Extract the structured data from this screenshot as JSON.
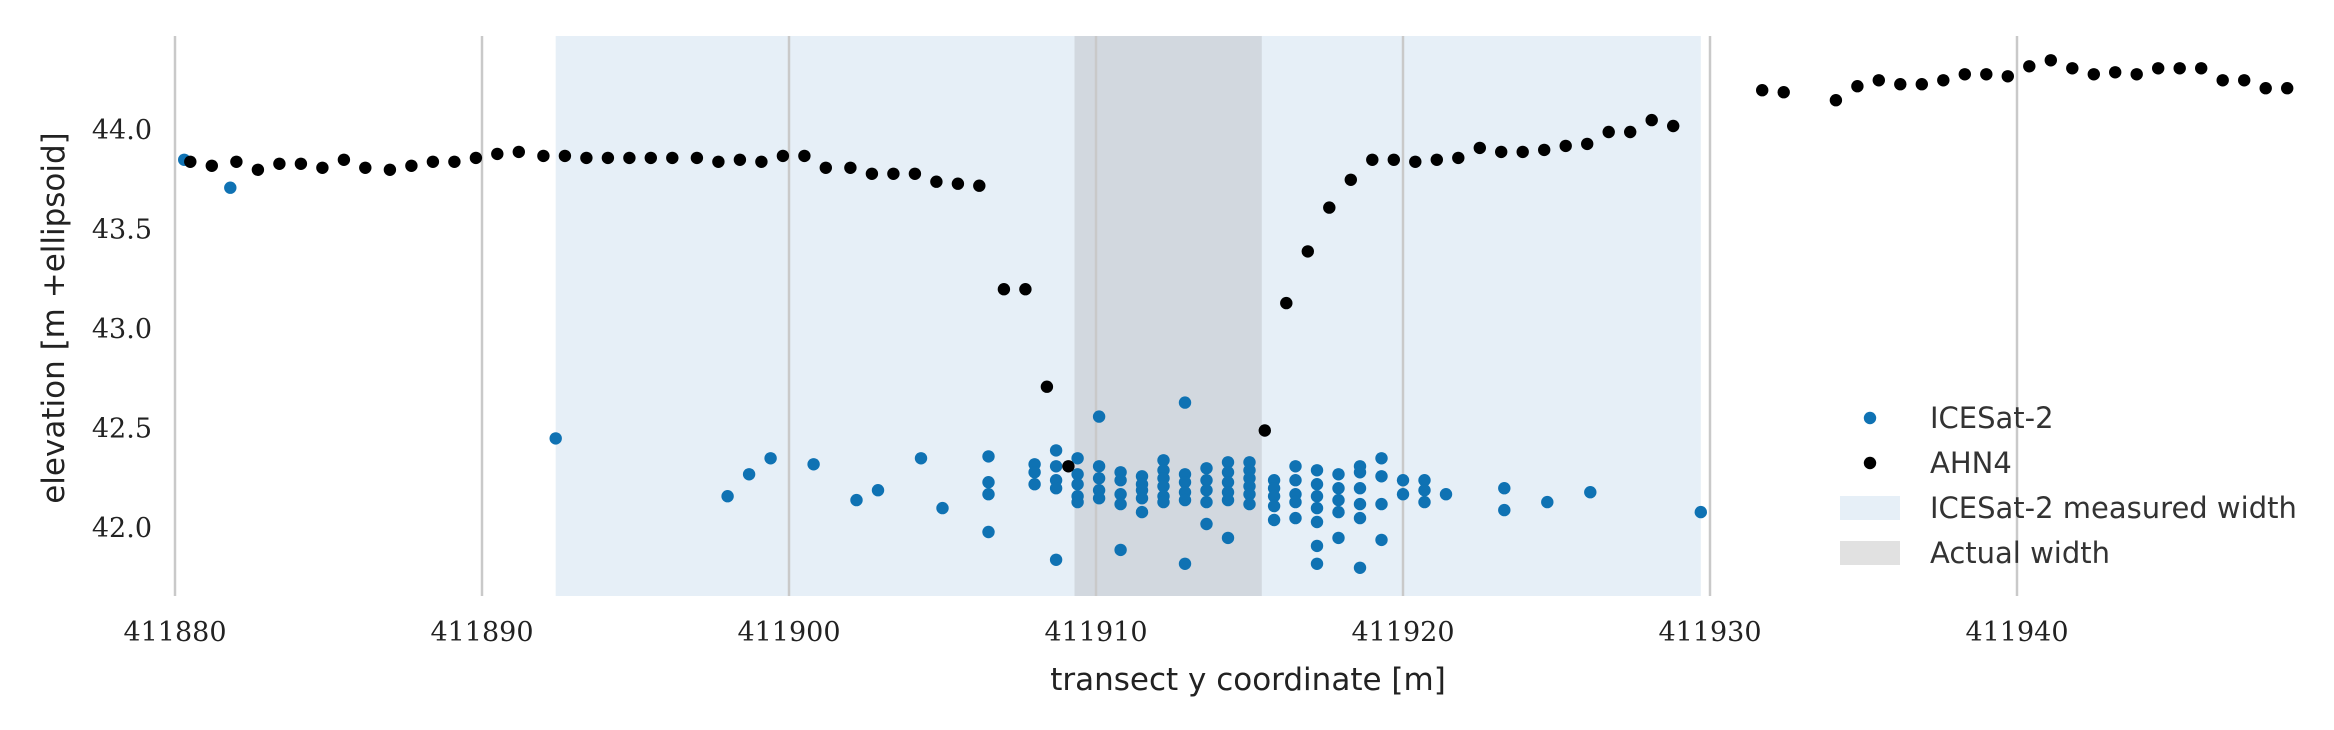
{
  "chart_data": {
    "type": "scatter",
    "title": "",
    "xlabel": "transect y coordinate [m]",
    "ylabel": "elevation [m +ellipsoid]",
    "xlim": [
      411880,
      411950
    ],
    "ylim": [
      41.67,
      44.5
    ],
    "x_ticks": [
      411880,
      411890,
      411900,
      411910,
      411920,
      411930,
      411940
    ],
    "y_ticks": [
      42.0,
      42.5,
      43.0,
      43.5,
      44.0
    ],
    "grid": "vertical",
    "legend_position": "lower-right",
    "regions": [
      {
        "name": "ICESat-2 measured width",
        "x0": 411892.4,
        "x1": 411929.7,
        "color": "#e6eff7"
      },
      {
        "name": "Actual width",
        "x0": 411909.3,
        "x1": 411915.4,
        "color": "#d2d8df"
      }
    ],
    "series": [
      {
        "name": "ICESat-2",
        "color": "#0f72b3",
        "points": [
          [
            411880.3,
            43.85
          ],
          [
            411881.8,
            43.71
          ],
          [
            411892.4,
            42.45
          ],
          [
            411898.0,
            42.16
          ],
          [
            411898.7,
            42.27
          ],
          [
            411899.4,
            42.35
          ],
          [
            411900.8,
            42.32
          ],
          [
            411902.2,
            42.14
          ],
          [
            411902.9,
            42.19
          ],
          [
            411904.3,
            42.35
          ],
          [
            411905.0,
            42.1
          ],
          [
            411906.5,
            42.36
          ],
          [
            411906.5,
            42.23
          ],
          [
            411906.5,
            42.17
          ],
          [
            411906.5,
            41.98
          ],
          [
            411908.0,
            42.32
          ],
          [
            411908.0,
            42.28
          ],
          [
            411908.0,
            42.22
          ],
          [
            411908.7,
            42.39
          ],
          [
            411908.7,
            42.31
          ],
          [
            411908.7,
            42.24
          ],
          [
            411908.7,
            42.2
          ],
          [
            411908.7,
            41.84
          ],
          [
            411909.4,
            42.35
          ],
          [
            411909.4,
            42.27
          ],
          [
            411909.4,
            42.22
          ],
          [
            411909.4,
            42.16
          ],
          [
            411909.4,
            42.13
          ],
          [
            411910.1,
            42.56
          ],
          [
            411910.1,
            42.31
          ],
          [
            411910.1,
            42.25
          ],
          [
            411910.1,
            42.19
          ],
          [
            411910.1,
            42.15
          ],
          [
            411910.8,
            42.28
          ],
          [
            411910.8,
            42.24
          ],
          [
            411910.8,
            42.17
          ],
          [
            411910.8,
            42.12
          ],
          [
            411910.8,
            41.89
          ],
          [
            411911.5,
            42.26
          ],
          [
            411911.5,
            42.22
          ],
          [
            411911.5,
            42.19
          ],
          [
            411911.5,
            42.15
          ],
          [
            411911.5,
            42.08
          ],
          [
            411912.2,
            42.34
          ],
          [
            411912.2,
            42.29
          ],
          [
            411912.2,
            42.25
          ],
          [
            411912.2,
            42.21
          ],
          [
            411912.2,
            42.16
          ],
          [
            411912.2,
            42.13
          ],
          [
            411912.9,
            42.63
          ],
          [
            411912.9,
            42.27
          ],
          [
            411912.9,
            42.23
          ],
          [
            411912.9,
            42.18
          ],
          [
            411912.9,
            42.14
          ],
          [
            411912.9,
            41.82
          ],
          [
            411913.6,
            42.3
          ],
          [
            411913.6,
            42.24
          ],
          [
            411913.6,
            42.19
          ],
          [
            411913.6,
            42.13
          ],
          [
            411913.6,
            42.02
          ],
          [
            411914.3,
            42.33
          ],
          [
            411914.3,
            42.28
          ],
          [
            411914.3,
            42.23
          ],
          [
            411914.3,
            42.18
          ],
          [
            411914.3,
            42.14
          ],
          [
            411914.3,
            41.95
          ],
          [
            411915.0,
            42.33
          ],
          [
            411915.0,
            42.29
          ],
          [
            411915.0,
            42.25
          ],
          [
            411915.0,
            42.21
          ],
          [
            411915.0,
            42.17
          ],
          [
            411915.0,
            42.12
          ],
          [
            411915.8,
            42.24
          ],
          [
            411915.8,
            42.2
          ],
          [
            411915.8,
            42.16
          ],
          [
            411915.8,
            42.11
          ],
          [
            411915.8,
            42.04
          ],
          [
            411916.5,
            42.31
          ],
          [
            411916.5,
            42.24
          ],
          [
            411916.5,
            42.17
          ],
          [
            411916.5,
            42.13
          ],
          [
            411916.5,
            42.05
          ],
          [
            411917.2,
            42.29
          ],
          [
            411917.2,
            42.22
          ],
          [
            411917.2,
            42.16
          ],
          [
            411917.2,
            42.1
          ],
          [
            411917.2,
            42.03
          ],
          [
            411917.2,
            41.91
          ],
          [
            411917.2,
            41.82
          ],
          [
            411917.9,
            42.27
          ],
          [
            411917.9,
            42.2
          ],
          [
            411917.9,
            42.14
          ],
          [
            411917.9,
            42.08
          ],
          [
            411917.9,
            41.95
          ],
          [
            411918.6,
            42.31
          ],
          [
            411918.6,
            42.28
          ],
          [
            411918.6,
            42.2
          ],
          [
            411918.6,
            42.12
          ],
          [
            411918.6,
            42.05
          ],
          [
            411918.6,
            41.8
          ],
          [
            411919.3,
            42.35
          ],
          [
            411919.3,
            42.26
          ],
          [
            411919.3,
            42.12
          ],
          [
            411919.3,
            41.94
          ],
          [
            411920.0,
            42.24
          ],
          [
            411920.0,
            42.17
          ],
          [
            411920.7,
            42.24
          ],
          [
            411920.7,
            42.19
          ],
          [
            411920.7,
            42.13
          ],
          [
            411921.4,
            42.17
          ],
          [
            411923.3,
            42.2
          ],
          [
            411923.3,
            42.09
          ],
          [
            411924.7,
            42.13
          ],
          [
            411926.1,
            42.18
          ],
          [
            411929.7,
            42.08
          ]
        ]
      },
      {
        "name": "AHN4",
        "color": "#000000",
        "points": [
          [
            411880.5,
            43.84
          ],
          [
            411881.2,
            43.82
          ],
          [
            411882.0,
            43.84
          ],
          [
            411882.7,
            43.8
          ],
          [
            411883.4,
            43.83
          ],
          [
            411884.1,
            43.83
          ],
          [
            411884.8,
            43.81
          ],
          [
            411885.5,
            43.85
          ],
          [
            411886.2,
            43.81
          ],
          [
            411887.0,
            43.8
          ],
          [
            411887.7,
            43.82
          ],
          [
            411888.4,
            43.84
          ],
          [
            411889.1,
            43.84
          ],
          [
            411889.8,
            43.86
          ],
          [
            411890.5,
            43.88
          ],
          [
            411891.2,
            43.89
          ],
          [
            411892.0,
            43.87
          ],
          [
            411892.7,
            43.87
          ],
          [
            411893.4,
            43.86
          ],
          [
            411894.1,
            43.86
          ],
          [
            411894.8,
            43.86
          ],
          [
            411895.5,
            43.86
          ],
          [
            411896.2,
            43.86
          ],
          [
            411897.0,
            43.86
          ],
          [
            411897.7,
            43.84
          ],
          [
            411898.4,
            43.85
          ],
          [
            411899.1,
            43.84
          ],
          [
            411899.8,
            43.87
          ],
          [
            411900.5,
            43.87
          ],
          [
            411901.2,
            43.81
          ],
          [
            411902.0,
            43.81
          ],
          [
            411902.7,
            43.78
          ],
          [
            411903.4,
            43.78
          ],
          [
            411904.1,
            43.78
          ],
          [
            411904.8,
            43.74
          ],
          [
            411905.5,
            43.73
          ],
          [
            411906.2,
            43.72
          ],
          [
            411907.0,
            43.2
          ],
          [
            411907.7,
            43.2
          ],
          [
            411908.4,
            42.71
          ],
          [
            411909.1,
            42.31
          ],
          [
            411915.5,
            42.49
          ],
          [
            411916.2,
            43.13
          ],
          [
            411916.9,
            43.39
          ],
          [
            411917.6,
            43.61
          ],
          [
            411918.3,
            43.75
          ],
          [
            411919.0,
            43.85
          ],
          [
            411919.7,
            43.85
          ],
          [
            411920.4,
            43.84
          ],
          [
            411921.1,
            43.85
          ],
          [
            411921.8,
            43.86
          ],
          [
            411922.5,
            43.91
          ],
          [
            411923.2,
            43.89
          ],
          [
            411923.9,
            43.89
          ],
          [
            411924.6,
            43.9
          ],
          [
            411925.3,
            43.92
          ],
          [
            411926.0,
            43.93
          ],
          [
            411926.7,
            43.99
          ],
          [
            411927.4,
            43.99
          ],
          [
            411928.1,
            44.05
          ],
          [
            411928.8,
            44.02
          ],
          [
            411931.7,
            44.2
          ],
          [
            411932.4,
            44.19
          ],
          [
            411934.1,
            44.15
          ],
          [
            411934.8,
            44.22
          ],
          [
            411935.5,
            44.25
          ],
          [
            411936.2,
            44.23
          ],
          [
            411936.9,
            44.23
          ],
          [
            411937.6,
            44.25
          ],
          [
            411938.3,
            44.28
          ],
          [
            411939.0,
            44.28
          ],
          [
            411939.7,
            44.27
          ],
          [
            411940.4,
            44.32
          ],
          [
            411941.1,
            44.35
          ],
          [
            411941.8,
            44.31
          ],
          [
            411942.5,
            44.28
          ],
          [
            411943.2,
            44.29
          ],
          [
            411943.9,
            44.28
          ],
          [
            411944.6,
            44.31
          ],
          [
            411945.3,
            44.31
          ],
          [
            411946.0,
            44.31
          ],
          [
            411946.7,
            44.25
          ],
          [
            411947.4,
            44.25
          ],
          [
            411948.1,
            44.21
          ],
          [
            411948.8,
            44.21
          ]
        ]
      }
    ],
    "legend": [
      {
        "label": "ICESat-2",
        "kind": "point",
        "color": "#0f72b3"
      },
      {
        "label": "AHN4",
        "kind": "point",
        "color": "#000000"
      },
      {
        "label": "ICESat-2 measured width",
        "kind": "patch",
        "color": "#e6eff7"
      },
      {
        "label": "Actual width",
        "kind": "patch",
        "color": "#e1e1e1"
      }
    ]
  }
}
